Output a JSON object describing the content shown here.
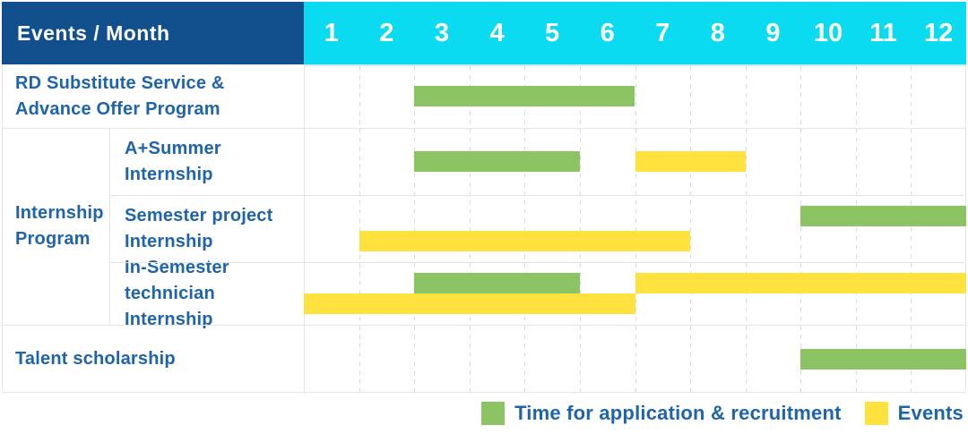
{
  "corner": {
    "label": "Events / Month"
  },
  "months": [
    "1",
    "2",
    "3",
    "4",
    "5",
    "6",
    "7",
    "8",
    "9",
    "10",
    "11",
    "12"
  ],
  "legend": [
    {
      "id": "recruitment",
      "label": "Time for application & recruitment",
      "color": "#8CC363"
    },
    {
      "id": "events",
      "label": "Events",
      "color": "#FFE23E"
    }
  ],
  "colors": {
    "header_bg": "#11508C",
    "month_header_bg": "#0BDBF0",
    "recruitment_green": "#8CC363",
    "events_yellow": "#FFE23E",
    "label_text": "#1E64AB",
    "grid_line": "#E5E5E5",
    "header_underline": "#CDEEF7"
  },
  "chart_data": {
    "type": "table",
    "subtype": "gantt",
    "title": "Events / Month",
    "x_axis": {
      "unit": "month",
      "ticks": [
        1,
        2,
        3,
        4,
        5,
        6,
        7,
        8,
        9,
        10,
        11,
        12
      ],
      "range": [
        1,
        12
      ]
    },
    "legend_series": [
      "Time for application & recruitment",
      "Events"
    ],
    "group_labels": [
      {
        "label": "Internship Program",
        "label_lines": [
          "Internship",
          "Program"
        ],
        "row_indexes": [
          1,
          2,
          3
        ]
      }
    ],
    "rows": [
      {
        "group": null,
        "label": "RD Substitute Service & Advance Offer Program",
        "label_lines": [
          "RD Substitute Service &",
          "Advance Offer Program"
        ],
        "bars": [
          {
            "series": "recruitment",
            "start_month": 3,
            "end_month": 6,
            "lane": 1
          }
        ]
      },
      {
        "group": "Internship Program",
        "label": "A+Summer Internship",
        "label_lines": [
          "A+Summer",
          "Internship"
        ],
        "bars": [
          {
            "series": "recruitment",
            "start_month": 3,
            "end_month": 5,
            "lane": 1
          },
          {
            "series": "events",
            "start_month": 7,
            "end_month": 8,
            "lane": 1
          }
        ]
      },
      {
        "group": "Internship Program",
        "label": "Semester project Internship",
        "label_lines": [
          "Semester project",
          "Internship"
        ],
        "bars": [
          {
            "series": "recruitment",
            "start_month": 10,
            "end_month": 12,
            "lane": 1
          },
          {
            "series": "events",
            "start_month": 2,
            "end_month": 7,
            "lane": 2
          }
        ]
      },
      {
        "group": "Internship Program",
        "label": "In-Semester technician Internship",
        "label_lines": [
          "In-Semester",
          "technician Internship"
        ],
        "bars": [
          {
            "series": "recruitment",
            "start_month": 3,
            "end_month": 5,
            "lane": 1
          },
          {
            "series": "events",
            "start_month": 7,
            "end_month": 12,
            "lane": 1
          },
          {
            "series": "events",
            "start_month": 1,
            "end_month": 6,
            "lane": 2
          }
        ]
      },
      {
        "group": null,
        "label": "Talent scholarship",
        "label_lines": [
          "Talent scholarship"
        ],
        "bars": [
          {
            "series": "recruitment",
            "start_month": 10,
            "end_month": 12,
            "lane": 1
          }
        ]
      }
    ]
  }
}
